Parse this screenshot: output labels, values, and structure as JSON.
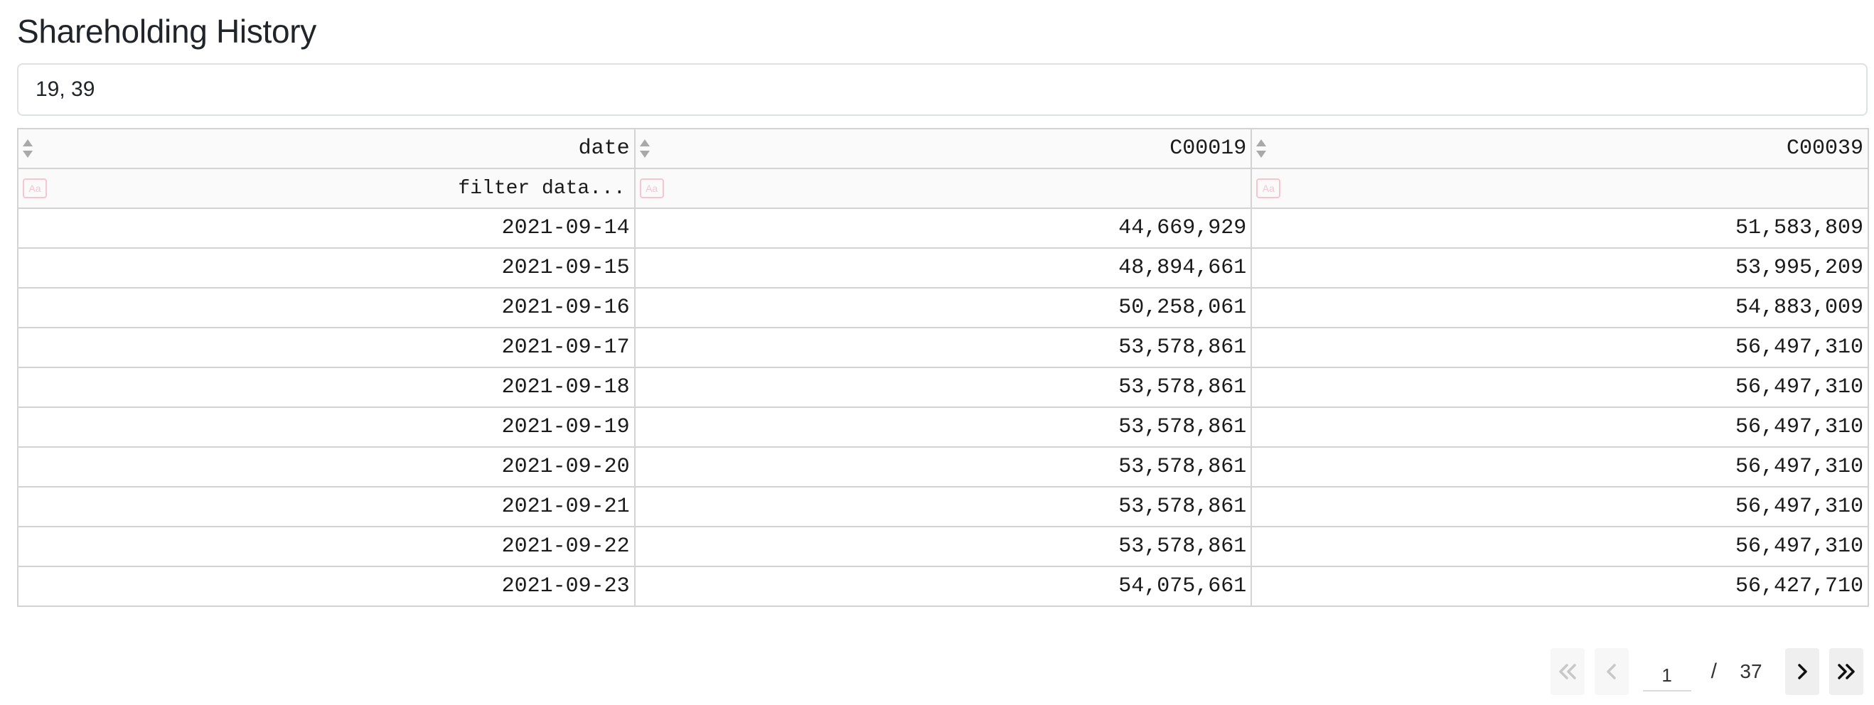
{
  "page": {
    "title": "Shareholding History"
  },
  "search": {
    "value": "19, 39"
  },
  "table": {
    "columns": [
      "date",
      "C00019",
      "C00039"
    ],
    "filter_placeholder": "filter data...",
    "case_toggle_label": "Aa",
    "rows": [
      [
        "2021-09-14",
        "44,669,929",
        "51,583,809"
      ],
      [
        "2021-09-15",
        "48,894,661",
        "53,995,209"
      ],
      [
        "2021-09-16",
        "50,258,061",
        "54,883,009"
      ],
      [
        "2021-09-17",
        "53,578,861",
        "56,497,310"
      ],
      [
        "2021-09-18",
        "53,578,861",
        "56,497,310"
      ],
      [
        "2021-09-19",
        "53,578,861",
        "56,497,310"
      ],
      [
        "2021-09-20",
        "53,578,861",
        "56,497,310"
      ],
      [
        "2021-09-21",
        "53,578,861",
        "56,497,310"
      ],
      [
        "2021-09-22",
        "53,578,861",
        "56,497,310"
      ],
      [
        "2021-09-23",
        "54,075,661",
        "56,427,710"
      ]
    ]
  },
  "pagination": {
    "current_page": "1",
    "separator": "/",
    "total_pages": "37",
    "first_enabled": false,
    "prev_enabled": false,
    "next_enabled": true,
    "last_enabled": true
  },
  "colors": {
    "border": "#d3d3d3",
    "header_bg": "#fafafa",
    "sort_icon": "#a9a9a9",
    "case_icon": "#f5c6d0"
  },
  "icons": {
    "sort": "sort-icon",
    "case": "case-sensitive-icon",
    "first": "double-chevron-left-icon",
    "prev": "chevron-left-icon",
    "next": "chevron-right-icon",
    "last": "double-chevron-right-icon"
  }
}
